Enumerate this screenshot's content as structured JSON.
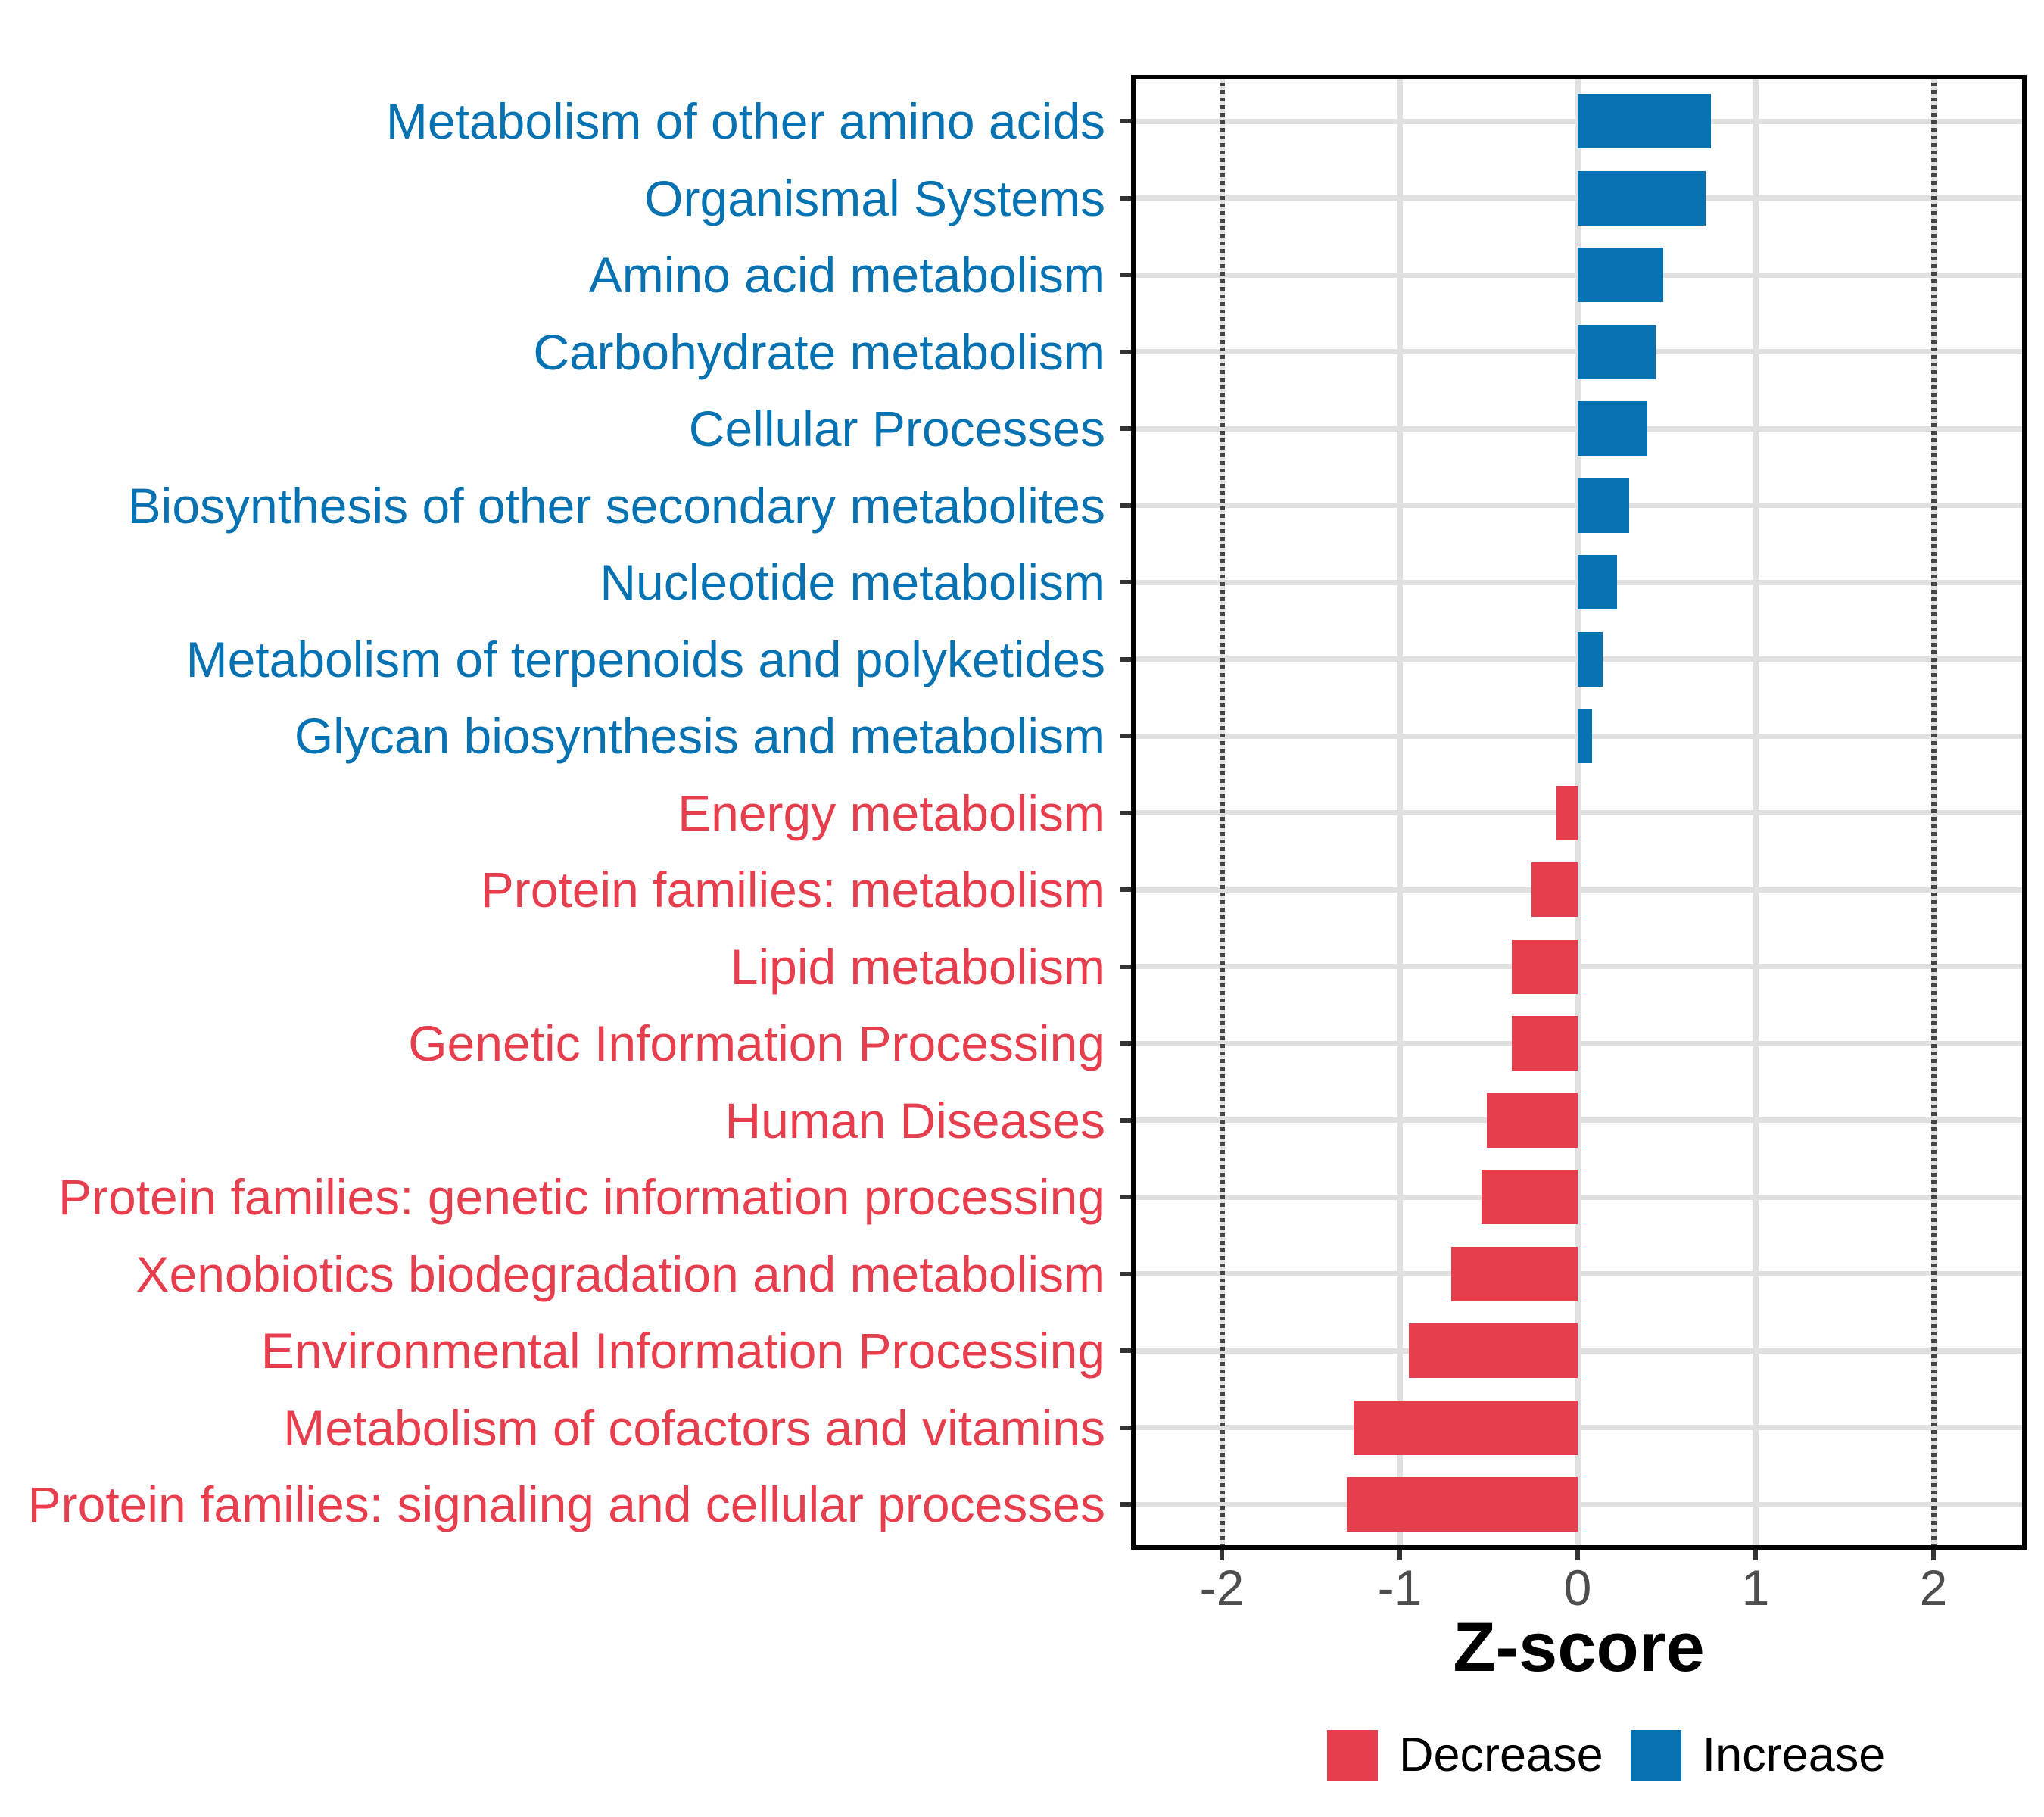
{
  "chart_data": {
    "type": "bar",
    "orientation": "horizontal",
    "title": "",
    "xlabel": "Z-score",
    "ylabel": "",
    "x_ticks": [
      "-2",
      "-1",
      "0",
      "1",
      "2"
    ],
    "x_tick_values": [
      -2,
      -1,
      0,
      1,
      2
    ],
    "xlim": [
      -2.51,
      2.52
    ],
    "grid": "major gridlines on, light gray",
    "legend_position": "bottom",
    "reference_lines": {
      "values": [
        -2,
        2
      ],
      "style": "dotted",
      "color": "#454545"
    },
    "colors": {
      "increase": "#0772B1",
      "decrease": "#E73E4D",
      "grid": "#E0E0E0",
      "axis_text": "#4D4D4D",
      "tick": "#333333",
      "panel_border": "#000000",
      "axis_title": "#000000",
      "legend_text": "#000000"
    },
    "legend": {
      "items": [
        {
          "label": "Decrease",
          "direction": "decrease"
        },
        {
          "label": "Increase",
          "direction": "increase"
        }
      ]
    },
    "categories": [
      {
        "label": "Metabolism of other amino acids",
        "value": 0.75,
        "direction": "increase"
      },
      {
        "label": "Organismal Systems",
        "value": 0.72,
        "direction": "increase"
      },
      {
        "label": "Amino acid metabolism",
        "value": 0.48,
        "direction": "increase"
      },
      {
        "label": "Carbohydrate metabolism",
        "value": 0.44,
        "direction": "increase"
      },
      {
        "label": "Cellular Processes",
        "value": 0.39,
        "direction": "increase"
      },
      {
        "label": "Biosynthesis of other secondary metabolites",
        "value": 0.29,
        "direction": "increase"
      },
      {
        "label": "Nucleotide metabolism",
        "value": 0.22,
        "direction": "increase"
      },
      {
        "label": "Metabolism of terpenoids and polyketides",
        "value": 0.14,
        "direction": "increase"
      },
      {
        "label": "Glycan biosynthesis and metabolism",
        "value": 0.08,
        "direction": "increase"
      },
      {
        "label": "Energy metabolism",
        "value": -0.12,
        "direction": "decrease"
      },
      {
        "label": "Protein families: metabolism",
        "value": -0.26,
        "direction": "decrease"
      },
      {
        "label": "Lipid metabolism",
        "value": -0.37,
        "direction": "decrease"
      },
      {
        "label": "Genetic Information Processing",
        "value": -0.37,
        "direction": "decrease"
      },
      {
        "label": "Human Diseases",
        "value": -0.51,
        "direction": "decrease"
      },
      {
        "label": "Protein families: genetic information processing",
        "value": -0.54,
        "direction": "decrease"
      },
      {
        "label": "Xenobiotics biodegradation and metabolism",
        "value": -0.71,
        "direction": "decrease"
      },
      {
        "label": "Environmental Information Processing",
        "value": -0.95,
        "direction": "decrease"
      },
      {
        "label": "Metabolism of cofactors and vitamins",
        "value": -1.26,
        "direction": "decrease"
      },
      {
        "label": "Protein families: signaling and cellular processes",
        "value": -1.3,
        "direction": "decrease"
      }
    ]
  }
}
